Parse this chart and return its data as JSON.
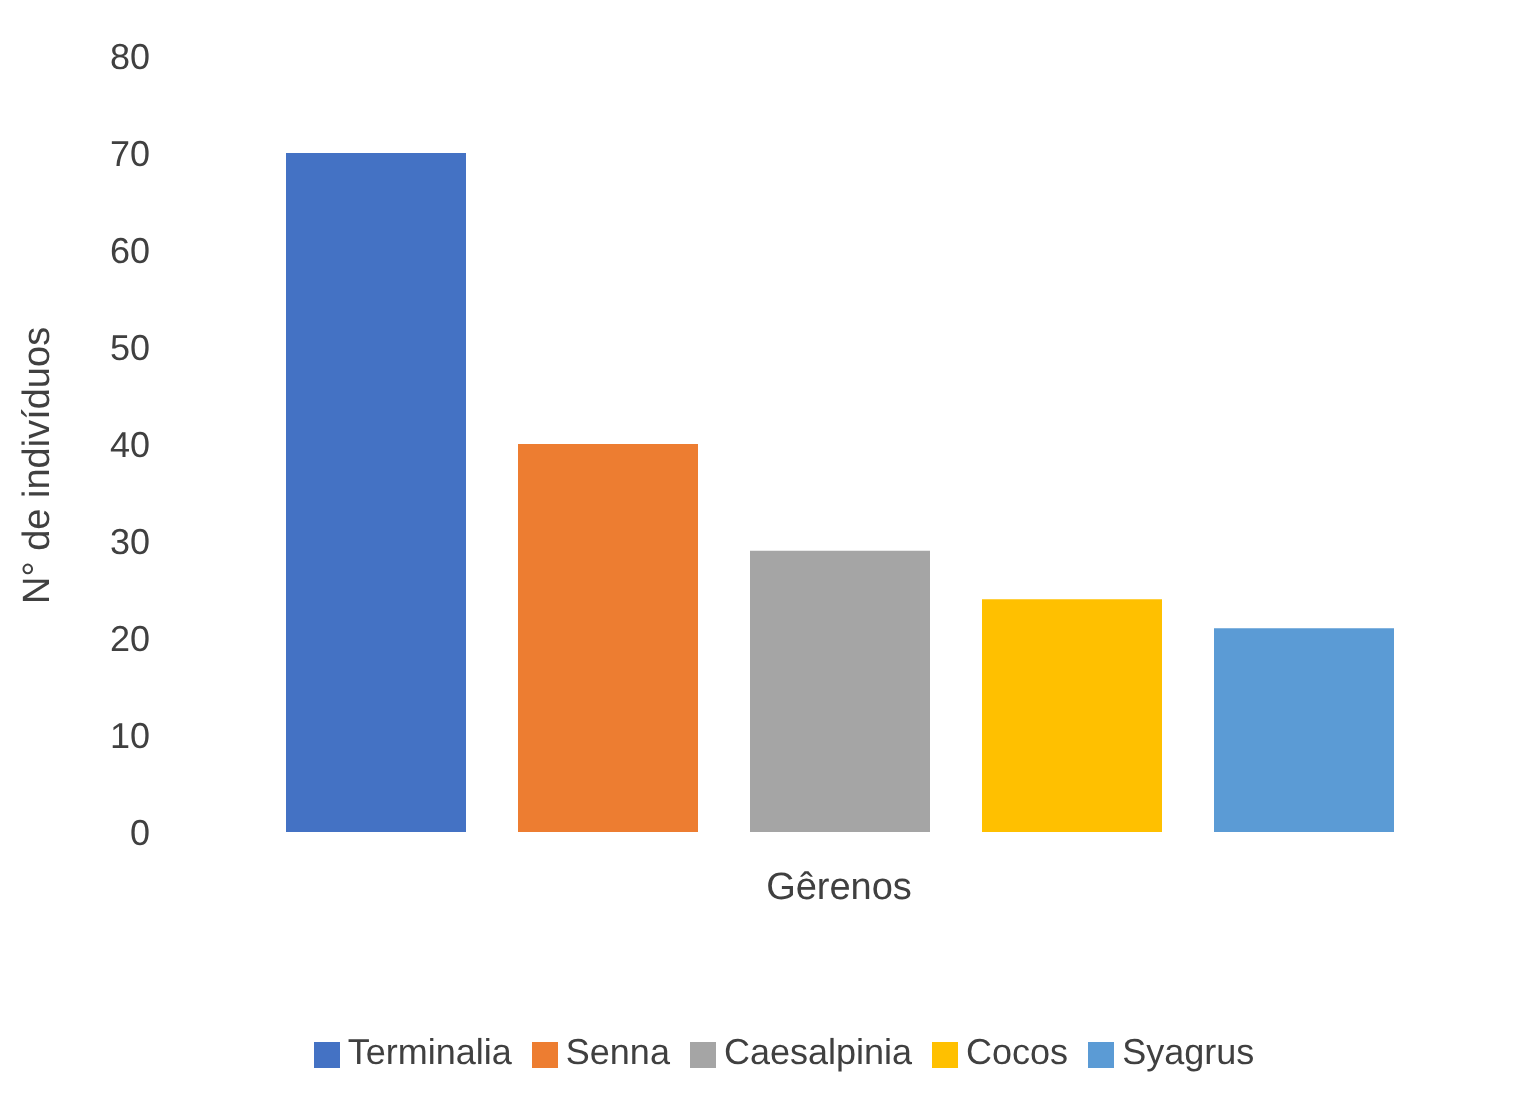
{
  "chart_data": {
    "type": "bar",
    "xlabel": "Gêrenos",
    "ylabel": "N° de indivíduos",
    "categories": [
      null
    ],
    "series": [
      {
        "name": "Terminalia",
        "color": "#4472c4",
        "values": [
          70
        ]
      },
      {
        "name": "Senna",
        "color": "#ed7d31",
        "values": [
          40
        ]
      },
      {
        "name": "Caesalpinia",
        "color": "#a5a5a5",
        "values": [
          29
        ]
      },
      {
        "name": "Cocos",
        "color": "#ffc000",
        "values": [
          24
        ]
      },
      {
        "name": "Syagrus",
        "color": "#5b9bd5",
        "values": [
          21
        ]
      }
    ],
    "ylim": [
      0,
      80
    ],
    "yticks": [
      0,
      10,
      20,
      30,
      40,
      50,
      60,
      70,
      80
    ],
    "grid": false,
    "legend": "bottom"
  }
}
